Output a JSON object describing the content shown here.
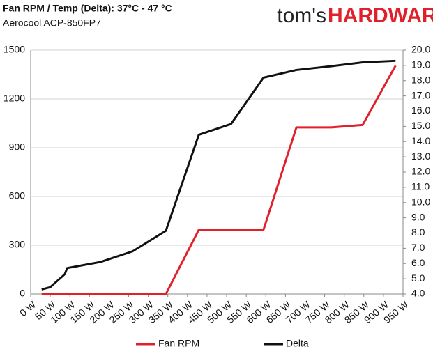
{
  "chart_data": {
    "type": "line",
    "title": "Fan RPM / Temp (Delta): 37°C - 47 °C",
    "subtitle": "Aerocool ACP-850FP7",
    "logo": [
      "tom's",
      "HARDWARE"
    ],
    "x": [
      28,
      50,
      87,
      93,
      178,
      260,
      345,
      429,
      511,
      594,
      678,
      767,
      847,
      931
    ],
    "series": [
      {
        "name": "Fan RPM",
        "color": "#e0202b",
        "values": [
          0,
          0,
          0,
          0,
          0,
          0,
          0,
          395,
          395,
          395,
          1025,
          1025,
          1040,
          1405
        ]
      },
      {
        "name": "Delta",
        "color": "#111111",
        "axis": "y2",
        "values": [
          4.3,
          4.45,
          5.3,
          5.7,
          6.1,
          6.8,
          8.15,
          14.45,
          15.15,
          18.2,
          18.7,
          18.95,
          19.2,
          19.3
        ]
      }
    ],
    "xlim": [
      0,
      950
    ],
    "xticks": [
      {
        "value": 0,
        "label": "0 W"
      },
      {
        "value": 50,
        "label": "50 W"
      },
      {
        "value": 100,
        "label": "100 W"
      },
      {
        "value": 150,
        "label": "150 W"
      },
      {
        "value": 200,
        "label": "200 W"
      },
      {
        "value": 250,
        "label": "250 W"
      },
      {
        "value": 300,
        "label": "300 W"
      },
      {
        "value": 350,
        "label": "350 W"
      },
      {
        "value": 400,
        "label": "400 W"
      },
      {
        "value": 450,
        "label": "450 W"
      },
      {
        "value": 500,
        "label": "500 W"
      },
      {
        "value": 550,
        "label": "550 W"
      },
      {
        "value": 600,
        "label": "600 W"
      },
      {
        "value": 650,
        "label": "650 W"
      },
      {
        "value": 700,
        "label": "700 W"
      },
      {
        "value": 750,
        "label": "750 W"
      },
      {
        "value": 800,
        "label": "800 W"
      },
      {
        "value": 850,
        "label": "850 W"
      },
      {
        "value": 900,
        "label": "900 W"
      },
      {
        "value": 950,
        "label": "950 W"
      }
    ],
    "ylim": [
      0,
      1500
    ],
    "yticks": [
      0,
      300,
      600,
      900,
      1200,
      1500
    ],
    "y2lim": [
      4,
      20
    ],
    "y2ticks": [
      {
        "value": 4,
        "label": "4.0"
      },
      {
        "value": 5,
        "label": "5.0"
      },
      {
        "value": 6,
        "label": "6.0"
      },
      {
        "value": 7,
        "label": "7.0"
      },
      {
        "value": 8,
        "label": "8.0"
      },
      {
        "value": 9,
        "label": "9.0"
      },
      {
        "value": 10,
        "label": "10.0"
      },
      {
        "value": 11,
        "label": "11.0"
      },
      {
        "value": 12,
        "label": "12.0"
      },
      {
        "value": 13,
        "label": "13.0"
      },
      {
        "value": 14,
        "label": "14.0"
      },
      {
        "value": 15,
        "label": "15.0"
      },
      {
        "value": 16,
        "label": "16.0"
      },
      {
        "value": 17,
        "label": "17.0"
      },
      {
        "value": 18,
        "label": "18.0"
      },
      {
        "value": 19,
        "label": "19.0"
      },
      {
        "value": 20,
        "label": "20.0"
      }
    ],
    "grid": true,
    "legend": "bottom"
  }
}
